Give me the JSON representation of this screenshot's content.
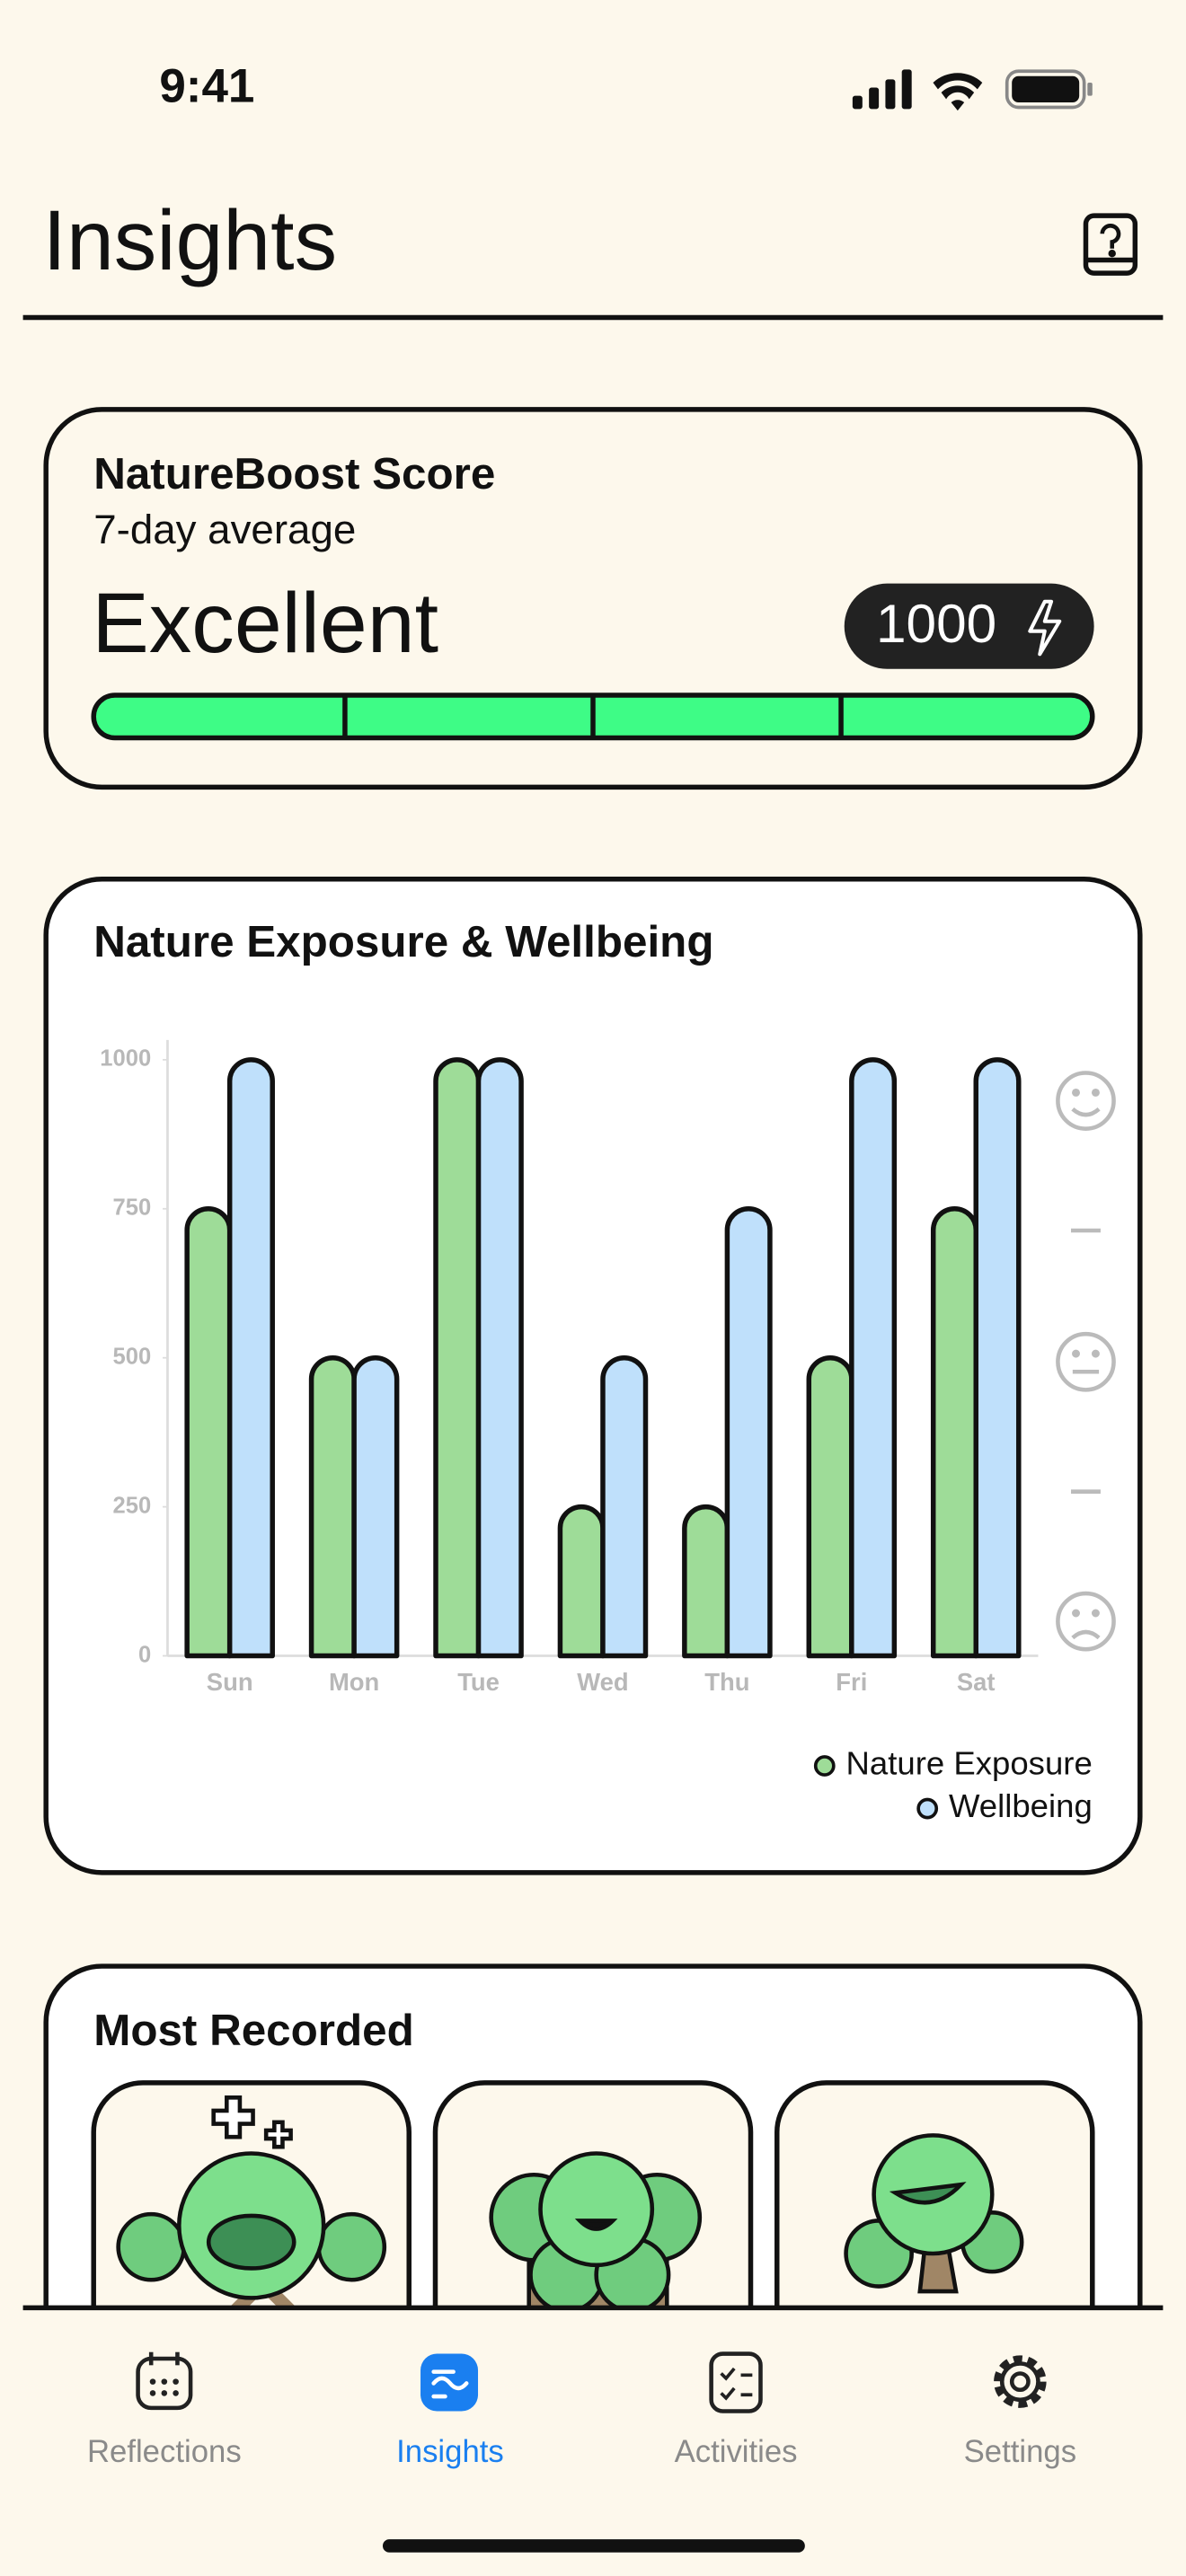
{
  "status_bar": {
    "time": "9:41"
  },
  "header": {
    "title": "Insights"
  },
  "score_card": {
    "title": "NatureBoost Score",
    "subtitle": "7-day average",
    "rating": "Excellent",
    "score": 1000
  },
  "chart_data": {
    "type": "bar",
    "title": "Nature Exposure & Wellbeing",
    "categories": [
      "Sun",
      "Mon",
      "Tue",
      "Wed",
      "Thu",
      "Fri",
      "Sat"
    ],
    "series": [
      {
        "name": "Nature Exposure",
        "color": "#9edc98",
        "values": [
          750,
          500,
          1000,
          250,
          250,
          500,
          750
        ]
      },
      {
        "name": "Wellbeing",
        "color": "#bfe0fb",
        "values": [
          1000,
          500,
          1000,
          500,
          750,
          1000,
          1000
        ]
      }
    ],
    "ylim": [
      0,
      1000
    ],
    "yticks": [
      0,
      250,
      500,
      750,
      1000
    ]
  },
  "most_recorded": {
    "title": "Most Recorded"
  },
  "tab_bar": {
    "tabs": [
      "Reflections",
      "Insights",
      "Activities",
      "Settings"
    ],
    "active": "Insights"
  }
}
